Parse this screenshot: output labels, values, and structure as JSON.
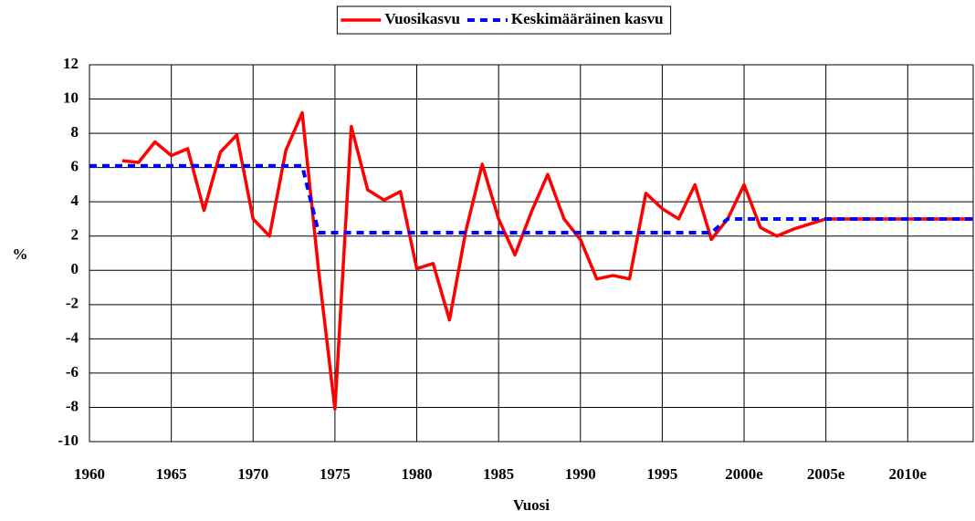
{
  "chart_data": {
    "type": "line",
    "xlabel": "Vuosi",
    "ylabel": "%",
    "x": [
      1960,
      1961,
      1962,
      1963,
      1964,
      1965,
      1966,
      1967,
      1968,
      1969,
      1970,
      1971,
      1972,
      1973,
      1974,
      1975,
      1976,
      1977,
      1978,
      1979,
      1980,
      1981,
      1982,
      1983,
      1984,
      1985,
      1986,
      1987,
      1988,
      1989,
      1990,
      1991,
      1992,
      1993,
      1994,
      1995,
      1996,
      1997,
      1998,
      1999,
      2000,
      2001,
      2002,
      2003,
      2004,
      2005,
      2006,
      2007,
      2008,
      2009,
      2010,
      2011,
      2012,
      2013,
      2014
    ],
    "series": [
      {
        "name": "Vuosikasvu",
        "color": "#ff0000",
        "dash": false,
        "values": [
          null,
          null,
          6.4,
          6.3,
          7.5,
          6.7,
          7.1,
          3.5,
          6.9,
          7.9,
          3.0,
          2.0,
          7.0,
          9.2,
          0,
          -8.1,
          8.4,
          4.7,
          4.1,
          4.6,
          0.1,
          0.4,
          -2.9,
          2.3,
          6.2,
          3.0,
          0.9,
          3.4,
          5.6,
          3.0,
          1.8,
          -0.5,
          -0.3,
          -0.5,
          4.5,
          3.6,
          3.0,
          5.0,
          1.8,
          3.0,
          5.0,
          2.5,
          2.0,
          2.4,
          2.7,
          3.0,
          3.0,
          3.0,
          3.0,
          3.0,
          3.0,
          3.0,
          3.0,
          3.0,
          3.0
        ]
      },
      {
        "name": "Keskimääräinen kasvu",
        "color": "#0000ff",
        "dash": true,
        "values": [
          6.1,
          6.1,
          6.1,
          6.1,
          6.1,
          6.1,
          6.1,
          6.1,
          6.1,
          6.1,
          6.1,
          6.1,
          6.1,
          6.1,
          2.2,
          2.2,
          2.2,
          2.2,
          2.2,
          2.2,
          2.2,
          2.2,
          2.2,
          2.2,
          2.2,
          2.2,
          2.2,
          2.2,
          2.2,
          2.2,
          2.2,
          2.2,
          2.2,
          2.2,
          2.2,
          2.2,
          2.2,
          2.2,
          2.2,
          3.0,
          3.0,
          3.0,
          3.0,
          3.0,
          3.0,
          3.0,
          3.0,
          3.0,
          3.0,
          3.0,
          3.0,
          3.0,
          3.0,
          3.0,
          3.0
        ]
      }
    ],
    "xlim": [
      1960,
      2014
    ],
    "xticks": [
      1960,
      1965,
      1970,
      1975,
      1980,
      1985,
      1990,
      1995,
      {
        "value": 2000,
        "label": "2000e"
      },
      {
        "value": 2005,
        "label": "2005e"
      },
      {
        "value": 2010,
        "label": "2010e"
      }
    ],
    "ylim": [
      -10,
      12
    ],
    "yticks": [
      -10,
      -8,
      -6,
      -4,
      -2,
      0,
      2,
      4,
      6,
      8,
      10,
      12
    ],
    "grid": true,
    "legend": "top"
  }
}
